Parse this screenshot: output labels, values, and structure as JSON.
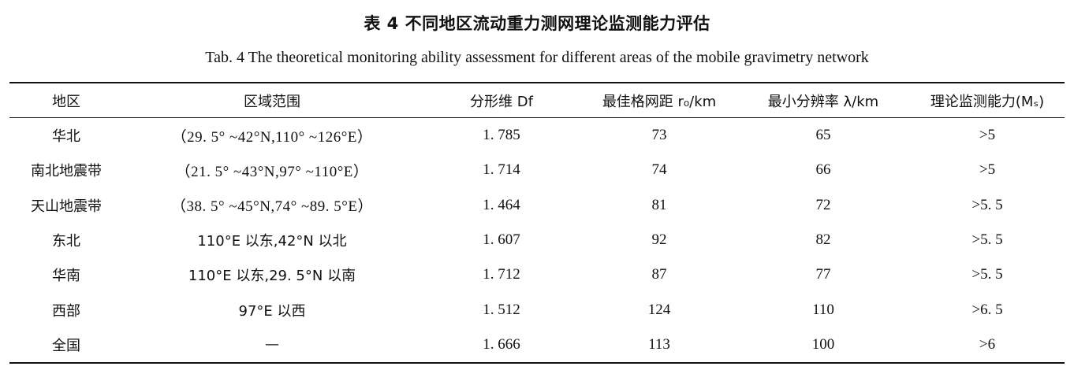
{
  "caption": {
    "zh": "表 4   不同地区流动重力测网理论监测能力评估",
    "en": "Tab. 4    The theoretical monitoring ability assessment for different areas of the mobile gravimetry network"
  },
  "table": {
    "headers": [
      "地区",
      "区域范围",
      "分形维 Df",
      "最佳格网距 r₀/km",
      "最小分辨率 λ/km",
      "理论监测能力(Mₛ)"
    ],
    "rows": [
      [
        "华北",
        "（29. 5° ~42°N,110° ~126°E）",
        "1. 785",
        "73",
        "65",
        ">5"
      ],
      [
        "南北地震带",
        "（21. 5° ~43°N,97° ~110°E）",
        "1. 714",
        "74",
        "66",
        ">5"
      ],
      [
        "天山地震带",
        "（38. 5° ~45°N,74° ~89. 5°E）",
        "1. 464",
        "81",
        "72",
        ">5. 5"
      ],
      [
        "东北",
        "110°E 以东,42°N 以北",
        "1. 607",
        "92",
        "82",
        ">5. 5"
      ],
      [
        "华南",
        "110°E 以东,29. 5°N 以南",
        "1. 712",
        "87",
        "77",
        ">5. 5"
      ],
      [
        "西部",
        "97°E 以西",
        "1. 512",
        "124",
        "110",
        ">6. 5"
      ],
      [
        "全国",
        "—",
        "1. 666",
        "113",
        "100",
        ">6"
      ]
    ]
  }
}
